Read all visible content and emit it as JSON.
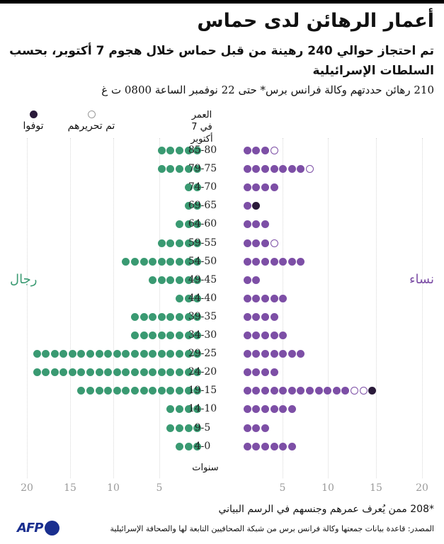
{
  "header": {
    "title": "أعمار الرهائن لدى حماس",
    "subtitle": "تم احتجاز حوالي 240 رهينة من قبل حماس خلال هجوم 7 أكتوبر، بحسب السلطات الإسرائيلية",
    "note": "210 رهائن حددتهم وكالة فرانس برس* حتى 22 نوفمبر الساعة 0800 ت غ"
  },
  "legend": {
    "age_heading_line1": "العمر",
    "age_heading_line2": "في 7 أكتوبر",
    "released": "تم تحريرهم",
    "dead": "توفوا"
  },
  "labels": {
    "men": "رجال",
    "women": "نساء",
    "years": "سنوات"
  },
  "colors": {
    "men": "#3a9a72",
    "women": "#7d4fa6",
    "dead": "#2a1a3a",
    "released": "#ffffff"
  },
  "footer": {
    "footnote": "*208 ممن يُعرف عمرهم وجنسهم في الرسم البياني",
    "source": "المصدر: قاعدة بيانات جمعتها وكالة فرانس برس من شبكة الصحافيين التابعة لها والصحافة الإسرائيلية",
    "logo": "AFP"
  },
  "chart_data": {
    "type": "bar",
    "title": "أعمار الرهائن لدى حماس",
    "subtitle": "تم احتجاز حوالي 240 رهينة من قبل حماس خلال هجوم 7 أكتوبر، بحسب السلطات الإسرائيلية",
    "xlabel": "سنوات",
    "ylabel": "العمر في 7 أكتوبر",
    "x_ticks_left": [
      20,
      15,
      10,
      5
    ],
    "x_ticks_right": [
      5,
      10,
      15,
      20
    ],
    "xlim": [
      0,
      20
    ],
    "grid": true,
    "legend": [
      "تم تحريرهم",
      "توفوا"
    ],
    "categories": [
      "85-80",
      "79-75",
      "74-70",
      "69-65",
      "64-60",
      "59-55",
      "54-50",
      "49-45",
      "44-40",
      "39-35",
      "34-30",
      "29-25",
      "24-20",
      "19-15",
      "14-10",
      "9-5",
      "4-0"
    ],
    "series": [
      {
        "name": "رجال",
        "values": [
          5,
          5,
          2,
          2,
          3,
          5,
          9,
          6,
          3,
          8,
          8,
          19,
          19,
          14,
          4,
          4,
          3
        ]
      },
      {
        "name": "نساء (محتجزات)",
        "values": [
          3,
          7,
          4,
          1,
          3,
          3,
          7,
          2,
          5,
          4,
          5,
          7,
          4,
          12,
          6,
          3,
          6
        ]
      },
      {
        "name": "نساء (تم تحريرهم)",
        "values": [
          1,
          1,
          0,
          0,
          0,
          1,
          0,
          0,
          0,
          0,
          0,
          0,
          0,
          2,
          0,
          0,
          0
        ]
      },
      {
        "name": "نساء (توفوا)",
        "values": [
          0,
          0,
          0,
          1,
          0,
          0,
          0,
          0,
          0,
          0,
          0,
          0,
          0,
          1,
          0,
          0,
          0
        ]
      }
    ]
  }
}
